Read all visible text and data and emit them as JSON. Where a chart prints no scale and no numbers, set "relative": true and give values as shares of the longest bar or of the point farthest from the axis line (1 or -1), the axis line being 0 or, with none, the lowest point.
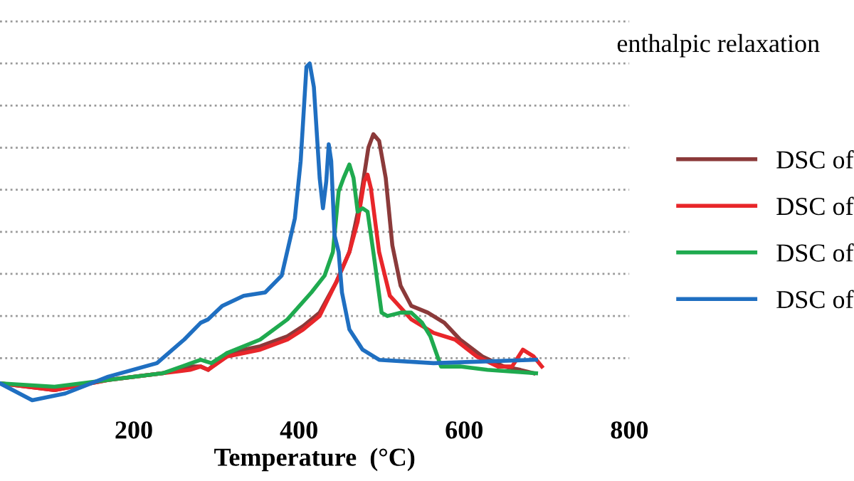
{
  "chart_data": {
    "type": "line",
    "relative": true,
    "xlabel": "Temperature  (°C)",
    "xlim": [
      38,
      800
    ],
    "xticks": [
      200,
      400,
      600,
      800
    ],
    "grid": "y",
    "legend": "right",
    "tick_labels": "x",
    "line_style": "solid",
    "marker": "none",
    "annotations": [
      "enthalpic relaxation"
    ],
    "series": [
      {
        "name": "DSC of",
        "color": "#8b3a3a",
        "x": [
          38,
          104,
          169,
          235,
          268,
          281,
          290,
          313,
          353,
          386,
          405,
          425,
          445,
          461,
          474,
          484,
          490,
          497,
          505,
          513,
          523,
          536,
          556,
          576,
          595,
          622,
          648,
          668,
          684
        ],
        "values": [
          0.05,
          0.03,
          0.06,
          0.08,
          0.1,
          0.1,
          0.09,
          0.14,
          0.16,
          0.19,
          0.22,
          0.26,
          0.35,
          0.44,
          0.59,
          0.75,
          0.79,
          0.77,
          0.66,
          0.46,
          0.34,
          0.28,
          0.26,
          0.23,
          0.18,
          0.13,
          0.1,
          0.09,
          0.08
        ]
      },
      {
        "name": "DSC of",
        "color": "#e8262a",
        "x": [
          38,
          104,
          169,
          235,
          268,
          281,
          290,
          313,
          353,
          386,
          405,
          425,
          445,
          461,
          471,
          479,
          483,
          487,
          497,
          510,
          536,
          563,
          589,
          615,
          641,
          658,
          671,
          684,
          694
        ],
        "values": [
          0.05,
          0.03,
          0.06,
          0.08,
          0.09,
          0.1,
          0.09,
          0.13,
          0.15,
          0.18,
          0.21,
          0.25,
          0.35,
          0.44,
          0.53,
          0.65,
          0.67,
          0.63,
          0.44,
          0.31,
          0.24,
          0.2,
          0.18,
          0.13,
          0.1,
          0.1,
          0.15,
          0.13,
          0.1
        ]
      },
      {
        "name": "DSC of",
        "color": "#1faa4f",
        "x": [
          38,
          104,
          169,
          235,
          281,
          294,
          313,
          353,
          386,
          415,
          431,
          441,
          448,
          454,
          461,
          466,
          471,
          477,
          483,
          490,
          500,
          507,
          523,
          536,
          549,
          559,
          572,
          595,
          628,
          687
        ],
        "values": [
          0.05,
          0.04,
          0.06,
          0.08,
          0.12,
          0.11,
          0.14,
          0.18,
          0.24,
          0.32,
          0.37,
          0.44,
          0.62,
          0.66,
          0.7,
          0.66,
          0.56,
          0.57,
          0.56,
          0.44,
          0.26,
          0.25,
          0.26,
          0.26,
          0.23,
          0.19,
          0.1,
          0.1,
          0.09,
          0.08
        ]
      },
      {
        "name": "DSC of",
        "color": "#1f6fc1",
        "x": [
          38,
          77,
          117,
          169,
          228,
          261,
          281,
          290,
          307,
          333,
          359,
          379,
          395,
          402,
          409,
          413,
          418,
          425,
          429,
          433,
          436,
          439,
          443,
          448,
          452,
          461,
          477,
          497,
          563,
          687
        ],
        "values": [
          0.05,
          0.0,
          0.02,
          0.07,
          0.11,
          0.18,
          0.23,
          0.24,
          0.28,
          0.31,
          0.32,
          0.37,
          0.54,
          0.71,
          0.99,
          1.0,
          0.93,
          0.66,
          0.57,
          0.65,
          0.76,
          0.71,
          0.49,
          0.44,
          0.32,
          0.21,
          0.15,
          0.12,
          0.11,
          0.12
        ]
      }
    ]
  }
}
